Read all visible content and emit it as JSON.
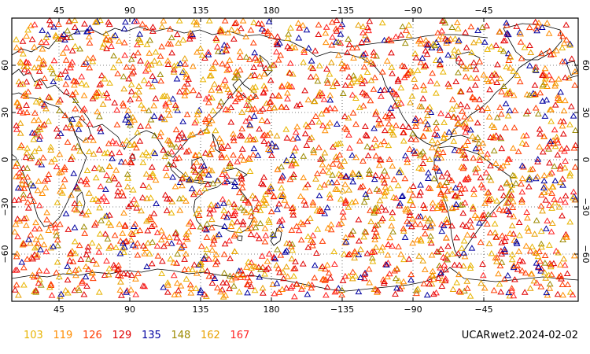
{
  "map": {
    "projection": "equirectangular",
    "center_longitude": 180,
    "lon_range": [
      15,
      375
    ],
    "lat_range": [
      -90,
      90
    ],
    "grid": "dotted",
    "top_lon_labels": [
      "45",
      "90",
      "135",
      "180",
      "−135",
      "−90",
      "−45"
    ],
    "bottom_lon_labels": [
      "45",
      "90",
      "135",
      "180",
      "−135",
      "−90",
      "−45"
    ],
    "left_lat_labels": [
      "60",
      "30",
      "0",
      "−30",
      "−60"
    ],
    "right_lat_labels": [
      "60",
      "30",
      "0",
      "−30",
      "−60"
    ],
    "marker_shape": "triangle-outline"
  },
  "legend": {
    "items": [
      {
        "label": "103",
        "color": "#e8b400"
      },
      {
        "label": "119",
        "color": "#ff8c00"
      },
      {
        "label": "126",
        "color": "#ff3b00"
      },
      {
        "label": "129",
        "color": "#e00000"
      },
      {
        "label": "135",
        "color": "#0000a0"
      },
      {
        "label": "148",
        "color": "#9c8a00"
      },
      {
        "label": "162",
        "color": "#e8a000"
      },
      {
        "label": "167",
        "color": "#ff2020"
      }
    ]
  },
  "source_label": "UCARwet2.2024-02-02",
  "colors": {
    "coastline": "#000000",
    "grid": "#000000",
    "frame": "#000000"
  }
}
